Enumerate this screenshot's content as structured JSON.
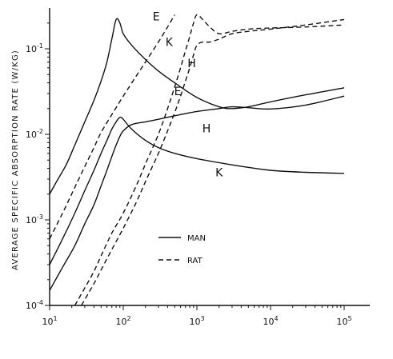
{
  "chart_data": {
    "type": "line",
    "title": "",
    "xlabel": "",
    "ylabel": "AVERAGE SPECIFIC ABSORPTION RATE (W/KG)",
    "xscale": "log",
    "yscale": "log",
    "xlim": [
      10,
      100000
    ],
    "ylim": [
      0.0001,
      0.3
    ],
    "grid": false,
    "legend_position": "lower-center",
    "x_ticks": [
      {
        "base": "10",
        "exp": "1",
        "value": 10
      },
      {
        "base": "10",
        "exp": "2",
        "value": 100
      },
      {
        "base": "10",
        "exp": "3",
        "value": 1000
      },
      {
        "base": "10",
        "exp": "4",
        "value": 10000
      },
      {
        "base": "10",
        "exp": "5",
        "value": 100000
      }
    ],
    "y_ticks": [
      {
        "base": "10",
        "exp": "-4",
        "value": 0.0001
      },
      {
        "base": "10",
        "exp": "-3",
        "value": 0.001
      },
      {
        "base": "10",
        "exp": "-2",
        "value": 0.01
      },
      {
        "base": "10",
        "exp": "-1",
        "value": 0.1
      }
    ],
    "legend": [
      {
        "label": "MAN",
        "style": "solid"
      },
      {
        "label": "RAT",
        "style": "dashed"
      }
    ],
    "series": [
      {
        "group": "MAN",
        "label": "E",
        "style": "solid",
        "x": [
          10,
          13,
          17,
          22,
          30,
          40,
          50,
          60,
          70,
          80,
          90,
          100,
          130,
          200,
          300,
          500,
          1000,
          2000,
          3000,
          5000,
          10000,
          30000,
          100000
        ],
        "y": [
          0.002,
          0.003,
          0.0045,
          0.0075,
          0.014,
          0.025,
          0.042,
          0.07,
          0.13,
          0.22,
          0.2,
          0.15,
          0.11,
          0.075,
          0.055,
          0.04,
          0.027,
          0.021,
          0.02,
          0.021,
          0.024,
          0.029,
          0.035
        ],
        "label_at": [
          550,
          0.032
        ]
      },
      {
        "group": "MAN",
        "label": "H",
        "style": "solid",
        "x": [
          10,
          15,
          22,
          30,
          40,
          50,
          60,
          70,
          80,
          90,
          100,
          130,
          200,
          300,
          500,
          1000,
          2000,
          3000,
          5000,
          10000,
          30000,
          100000
        ],
        "y": [
          0.00015,
          0.00028,
          0.0005,
          0.0009,
          0.0015,
          0.0025,
          0.0038,
          0.0055,
          0.0075,
          0.0095,
          0.011,
          0.013,
          0.014,
          0.015,
          0.0165,
          0.0185,
          0.02,
          0.021,
          0.0205,
          0.0198,
          0.022,
          0.028
        ],
        "label_at": [
          1350,
          0.0118
        ]
      },
      {
        "group": "MAN",
        "label": "K",
        "style": "solid",
        "x": [
          10,
          15,
          22,
          30,
          40,
          50,
          60,
          70,
          80,
          90,
          100,
          130,
          200,
          300,
          500,
          1000,
          3000,
          10000,
          30000,
          100000
        ],
        "y": [
          0.0003,
          0.0006,
          0.0012,
          0.0022,
          0.0038,
          0.006,
          0.0085,
          0.0115,
          0.014,
          0.0158,
          0.015,
          0.0115,
          0.0085,
          0.007,
          0.006,
          0.0052,
          0.0044,
          0.0038,
          0.0036,
          0.0035
        ],
        "label_at": [
          2000,
          0.0036
        ]
      },
      {
        "group": "RAT",
        "label": "E",
        "style": "dashed",
        "x": [
          10,
          15,
          22,
          30,
          40,
          50,
          70,
          100,
          150,
          200,
          300,
          400,
          500
        ],
        "y": [
          0.0006,
          0.0012,
          0.0024,
          0.0042,
          0.007,
          0.0105,
          0.017,
          0.028,
          0.048,
          0.07,
          0.12,
          0.18,
          0.25
        ],
        "label_at": [
          280,
          0.24
        ]
      },
      {
        "group": "RAT",
        "label": "K",
        "style": "dashed",
        "x": [
          22,
          30,
          40,
          50,
          70,
          100,
          150,
          200,
          300,
          400,
          500,
          600,
          700,
          800,
          900,
          1000,
          1200,
          1500,
          2000,
          3000,
          5000,
          10000,
          30000,
          100000
        ],
        "y": [
          0.0001,
          0.00016,
          0.00025,
          0.00038,
          0.0007,
          0.0012,
          0.0025,
          0.0045,
          0.01,
          0.02,
          0.036,
          0.06,
          0.095,
          0.14,
          0.2,
          0.25,
          0.22,
          0.18,
          0.15,
          0.16,
          0.17,
          0.175,
          0.18,
          0.19
        ],
        "label_at": [
          420,
          0.12
        ]
      },
      {
        "group": "RAT",
        "label": "H",
        "style": "dashed",
        "x": [
          27,
          40,
          50,
          70,
          100,
          150,
          200,
          300,
          400,
          500,
          600,
          700,
          800,
          900,
          1000,
          1200,
          1500,
          2000,
          3000,
          5000,
          10000,
          30000,
          100000
        ],
        "y": [
          0.0001,
          0.00018,
          0.00026,
          0.00045,
          0.0008,
          0.0016,
          0.0028,
          0.006,
          0.011,
          0.018,
          0.028,
          0.042,
          0.06,
          0.085,
          0.11,
          0.12,
          0.12,
          0.13,
          0.15,
          0.16,
          0.17,
          0.19,
          0.22
        ],
        "label_at": [
          850,
          0.068
        ]
      }
    ]
  }
}
